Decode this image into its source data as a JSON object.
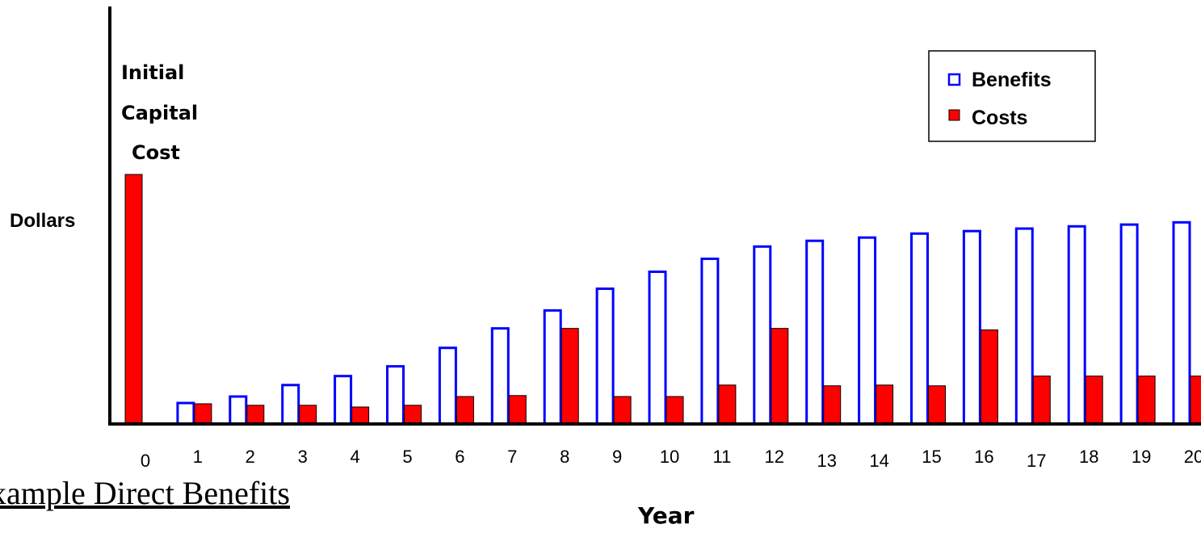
{
  "caption": "xample Direct Benefits",
  "colors": {
    "benefits": "#0000ff",
    "costs": "#ff0000",
    "axis": "#000000"
  },
  "chart_data": {
    "type": "bar",
    "title": "",
    "xlabel": "Year",
    "ylabel": "Dollars",
    "ylim": [
      0,
      100
    ],
    "grid": false,
    "legend_position": "top-right",
    "annotation": [
      "Initial",
      "Capital",
      "Cost"
    ],
    "categories": [
      "0",
      "1",
      "2",
      "3",
      "4",
      "5",
      "6",
      "7",
      "8",
      "9",
      "10",
      "11",
      "12",
      "13",
      "14",
      "15",
      "16",
      "17",
      "18",
      "19",
      "20"
    ],
    "series": [
      {
        "name": "Benefits",
        "style": "outline",
        "values": [
          0,
          8.4,
          11.0,
          15.6,
          19.2,
          23.1,
          30.5,
          38.3,
          45.5,
          54.2,
          61.0,
          66.2,
          71.1,
          73.4,
          74.7,
          76.3,
          77.3,
          78.3,
          79.2,
          79.9,
          80.8
        ]
      },
      {
        "name": "Costs",
        "style": "filled",
        "values": [
          100,
          8.1,
          7.5,
          7.5,
          6.8,
          7.5,
          11.0,
          11.4,
          38.3,
          11.0,
          11.0,
          15.6,
          38.3,
          15.3,
          15.6,
          15.3,
          37.7,
          19.2,
          19.2,
          19.2,
          19.2
        ]
      }
    ]
  }
}
